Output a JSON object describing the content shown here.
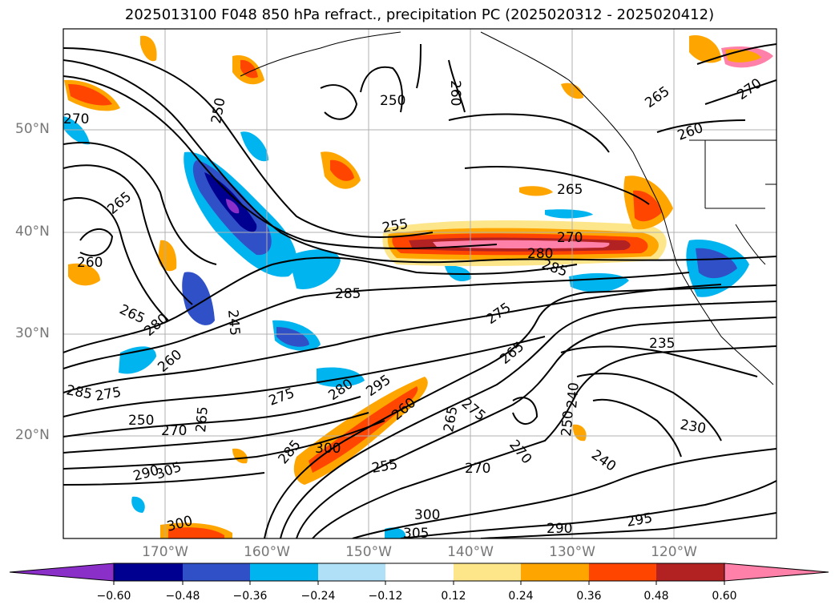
{
  "title": "2025013100 F048 850 hPa refract., precipitation PC (2025020312 - 2025020412)",
  "map": {
    "lat_labels": [
      "50°N",
      "40°N",
      "30°N",
      "20°N"
    ],
    "lon_labels": [
      "170°W",
      "160°W",
      "150°W",
      "140°W",
      "130°W",
      "120°W"
    ],
    "contour_labels": [
      "250",
      "260",
      "250",
      "270",
      "265",
      "260",
      "270",
      "265",
      "260",
      "265",
      "255",
      "270",
      "280",
      "285",
      "285",
      "265",
      "280",
      "245",
      "260",
      "285",
      "275",
      "250",
      "270",
      "265",
      "275",
      "280",
      "295",
      "300",
      "285",
      "260",
      "265",
      "275",
      "275",
      "265",
      "240",
      "235",
      "230",
      "240",
      "250",
      "270",
      "255",
      "290",
      "300",
      "305",
      "290",
      "295",
      "300",
      "305",
      "270"
    ]
  },
  "colorbar": {
    "ticks": [
      "−0.60",
      "−0.48",
      "−0.36",
      "−0.24",
      "−0.12",
      "0.12",
      "0.24",
      "0.36",
      "0.48",
      "0.60"
    ],
    "colors": [
      "#8b2fc9",
      "#000090",
      "#3050c8",
      "#00b4f0",
      "#b0e0f8",
      "#ffffff",
      "#fde68a",
      "#ffa500",
      "#ff4500",
      "#b22222",
      "#ff80a8"
    ]
  }
}
